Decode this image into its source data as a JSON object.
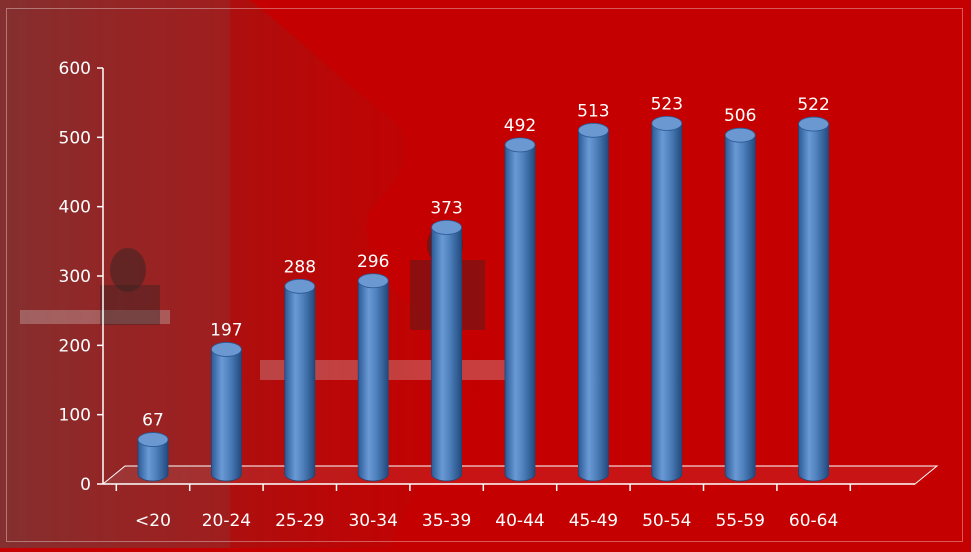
{
  "chart_data": {
    "type": "bar",
    "title": "",
    "xlabel": "",
    "ylabel": "",
    "categories": [
      "<20",
      "20-24",
      "25-29",
      "30-34",
      "35-39",
      "40-44",
      "45-49",
      "50-54",
      "55-59",
      "60-64"
    ],
    "values": [
      67,
      197,
      288,
      296,
      373,
      492,
      513,
      523,
      506,
      522
    ],
    "ylim": [
      0,
      600
    ],
    "yticks": [
      "0",
      "100",
      "200",
      "300",
      "400",
      "500",
      "600"
    ],
    "grid": false,
    "legend": "none",
    "data_labels": true,
    "bar_style": "3d-cylinder"
  },
  "colors": {
    "background": "#c40000",
    "bar": "#4f81bd",
    "bar_dark": "#2b5a96",
    "text": "#ffffff",
    "axis": "#ffffff"
  }
}
